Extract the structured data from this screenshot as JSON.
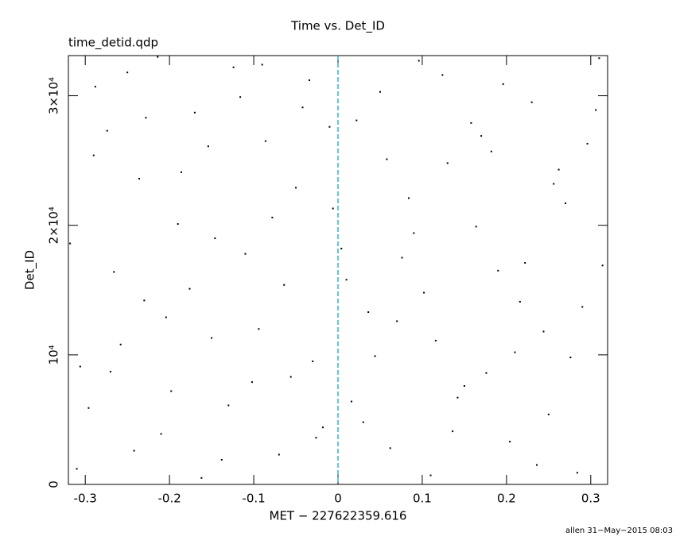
{
  "chart_data": {
    "type": "scatter",
    "title": "Time vs. Det_ID",
    "subtitle": "time_detid.qdp",
    "x_label": "MET − 227622359.616",
    "y_label": "Det_ID",
    "footer": "allen 31−May−2015 08:03",
    "color": "#000000",
    "vline": 0,
    "vline_color": "#00a0c0",
    "xlim": [
      -0.32,
      0.32
    ],
    "ylim": [
      0,
      33100
    ],
    "xticks": [
      -0.3,
      -0.2,
      -0.1,
      0,
      0.1,
      0.2,
      0.3
    ],
    "yticks": [
      0,
      {
        "value": 10000,
        "label": "10⁴"
      },
      {
        "value": 20000,
        "label": "2×10⁴"
      },
      {
        "value": 30000,
        "label": "3×10⁴"
      }
    ],
    "x": [
      -0.31,
      -0.29,
      -0.27,
      -0.25,
      -0.23,
      -0.21,
      -0.19,
      -0.17,
      -0.15,
      -0.13,
      -0.11,
      -0.09,
      -0.07,
      -0.05,
      -0.03,
      -0.01,
      0.01,
      0.03,
      0.05,
      0.07,
      0.09,
      0.11,
      0.13,
      0.15,
      0.17,
      0.19,
      0.21,
      0.23,
      0.25,
      0.27,
      0.29,
      0.31,
      -0.318,
      -0.296,
      -0.274,
      -0.258,
      -0.236,
      -0.214,
      -0.198,
      -0.176,
      -0.154,
      -0.138,
      -0.116,
      -0.094,
      -0.078,
      -0.056,
      -0.034,
      -0.018,
      0.004,
      0.022,
      0.044,
      0.062,
      0.084,
      0.102,
      0.124,
      0.142,
      0.164,
      0.182,
      0.204,
      0.222,
      0.244,
      0.262,
      0.284,
      0.306,
      -0.306,
      -0.288,
      -0.266,
      -0.242,
      -0.228,
      -0.204,
      -0.186,
      -0.162,
      -0.146,
      -0.124,
      -0.102,
      -0.086,
      -0.064,
      -0.042,
      -0.026,
      -0.006,
      0.016,
      0.036,
      0.058,
      0.076,
      0.096,
      0.116,
      0.136,
      0.158,
      0.176,
      0.196,
      0.216,
      0.236,
      0.256,
      0.276,
      0.296,
      0.314
    ],
    "values": [
      1200,
      25400,
      8700,
      31800,
      14200,
      3900,
      20100,
      28700,
      11300,
      6100,
      17800,
      32400,
      2300,
      22900,
      9500,
      27600,
      15800,
      4800,
      30300,
      12600,
      19400,
      700,
      24800,
      7600,
      26900,
      16500,
      10200,
      29500,
      5400,
      21700,
      13700,
      32900,
      18600,
      5900,
      27300,
      10800,
      23600,
      33000,
      7200,
      15100,
      26100,
      1900,
      29900,
      12000,
      20600,
      8300,
      31200,
      4400,
      18200,
      28100,
      9900,
      2800,
      22100,
      14800,
      31600,
      6700,
      19900,
      25700,
      3300,
      17100,
      11800,
      24300,
      900,
      28900,
      9100,
      30700,
      16400,
      2600,
      28300,
      12900,
      24100,
      500,
      19000,
      32200,
      7900,
      26500,
      15400,
      29100,
      3600,
      21300,
      6400,
      13300,
      25100,
      17500,
      32700,
      11100,
      4100,
      27900,
      8600,
      30900,
      14100,
      1500,
      23200,
      9800,
      26300,
      16900
    ]
  }
}
